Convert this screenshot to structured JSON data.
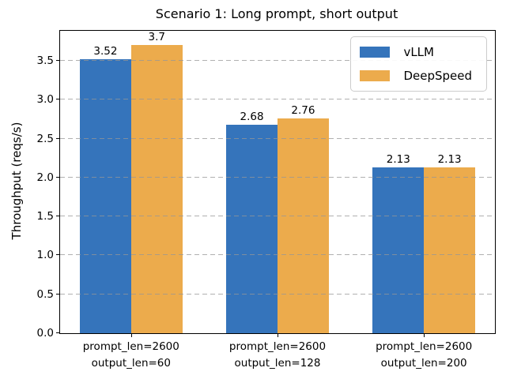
{
  "chart_data": {
    "type": "bar",
    "title": "Scenario 1: Long prompt, short output",
    "xlabel": "",
    "ylabel": "Throughput (reqs/s)",
    "ylim": [
      0,
      3.885
    ],
    "ytick_labels": [
      "0.0",
      "0.5",
      "1.0",
      "1.5",
      "2.0",
      "2.5",
      "3.0",
      "3.5"
    ],
    "grid": "horizontal-dashed-over-bars",
    "legend_position": "upper-right",
    "categories": [
      {
        "line1": "prompt_len=2600",
        "line2": "output_len=60"
      },
      {
        "line1": "prompt_len=2600",
        "line2": "output_len=128"
      },
      {
        "line1": "prompt_len=2600",
        "line2": "output_len=200"
      }
    ],
    "series": [
      {
        "name": "vLLM",
        "color": "#3574BB",
        "values": [
          3.52,
          2.68,
          2.13
        ],
        "labels": [
          "3.52",
          "2.68",
          "2.13"
        ]
      },
      {
        "name": "DeepSpeed",
        "color": "#ECAB4C",
        "values": [
          3.7,
          2.76,
          2.13
        ],
        "labels": [
          "3.7",
          "2.76",
          "2.13"
        ]
      }
    ]
  },
  "colors": {
    "grid": "#969696",
    "spine": "#000000",
    "text": "#000000",
    "legend_border": "#cccccc"
  }
}
